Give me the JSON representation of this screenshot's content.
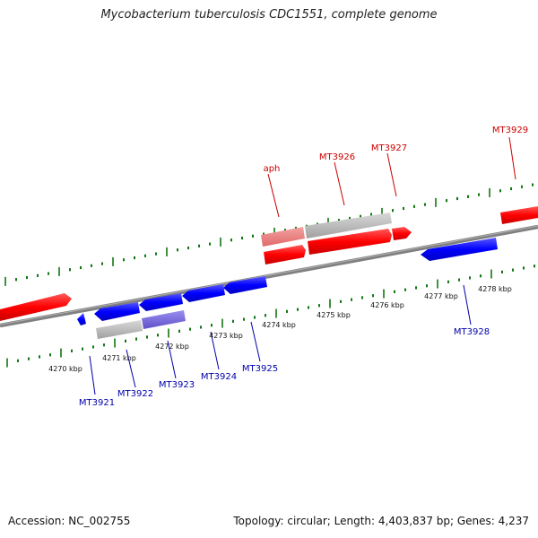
{
  "title": "Mycobacterium tuberculosis CDC1551, complete genome",
  "footer": {
    "accession": "Accession: NC_002755",
    "summary": "Topology: circular; Length: 4,403,837 bp; Genes: 4,237"
  },
  "ticks": [
    "4270 kbp",
    "4271 kbp",
    "4272 kbp",
    "4273 kbp",
    "4274 kbp",
    "4275 kbp",
    "4276 kbp",
    "4277 kbp",
    "4278 kbp"
  ],
  "colors": {
    "forward": "#ff0000",
    "reverse": "#0000ff",
    "forward_label": "#cc0000",
    "reverse_label": "#0000aa",
    "tick": "#117711",
    "backbone": "#808080"
  },
  "labels": {
    "aph": "aph",
    "MT3926": "MT3926",
    "MT3927": "MT3927",
    "MT3929": "MT3929",
    "MT3921": "MT3921",
    "MT3922": "MT3922",
    "MT3923": "MT3923",
    "MT3924": "MT3924",
    "MT3925": "MT3925",
    "MT3928": "MT3928"
  }
}
